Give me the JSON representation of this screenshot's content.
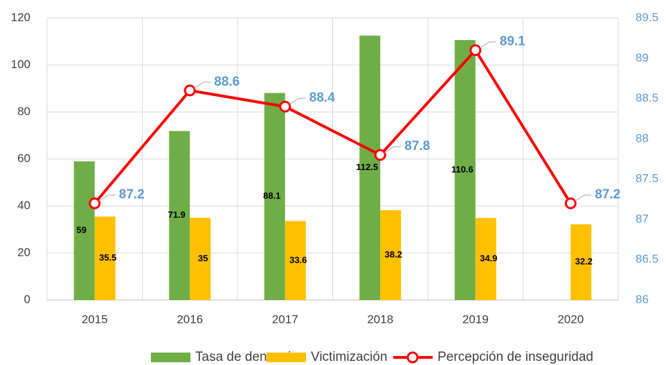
{
  "chart_data": {
    "type": "bar_line",
    "categories": [
      "2015",
      "2016",
      "2017",
      "2018",
      "2019",
      "2020"
    ],
    "series": [
      {
        "name": "Tasa de denuncias",
        "color": "#70ad47",
        "type": "bar",
        "values": [
          59,
          71.9,
          88.1,
          112.5,
          110.6,
          null
        ]
      },
      {
        "name": "Victimización",
        "color": "#ffc000",
        "type": "bar",
        "values": [
          35.5,
          35,
          33.6,
          38.2,
          34.9,
          32.2
        ]
      },
      {
        "name": "Percepción de inseguridad",
        "color": "#ff0000",
        "type": "line",
        "axis": "y2",
        "values": [
          87.2,
          88.6,
          88.4,
          87.8,
          89.1,
          87.2
        ]
      }
    ],
    "ylim": [
      0,
      120
    ],
    "yticks": [
      0,
      20,
      40,
      60,
      80,
      100,
      120
    ],
    "y2lim": [
      86,
      89.5
    ],
    "y2ticks": [
      86,
      86.5,
      87,
      87.5,
      88,
      88.5,
      89,
      89.5
    ],
    "grid": true,
    "legend": "bottom"
  }
}
